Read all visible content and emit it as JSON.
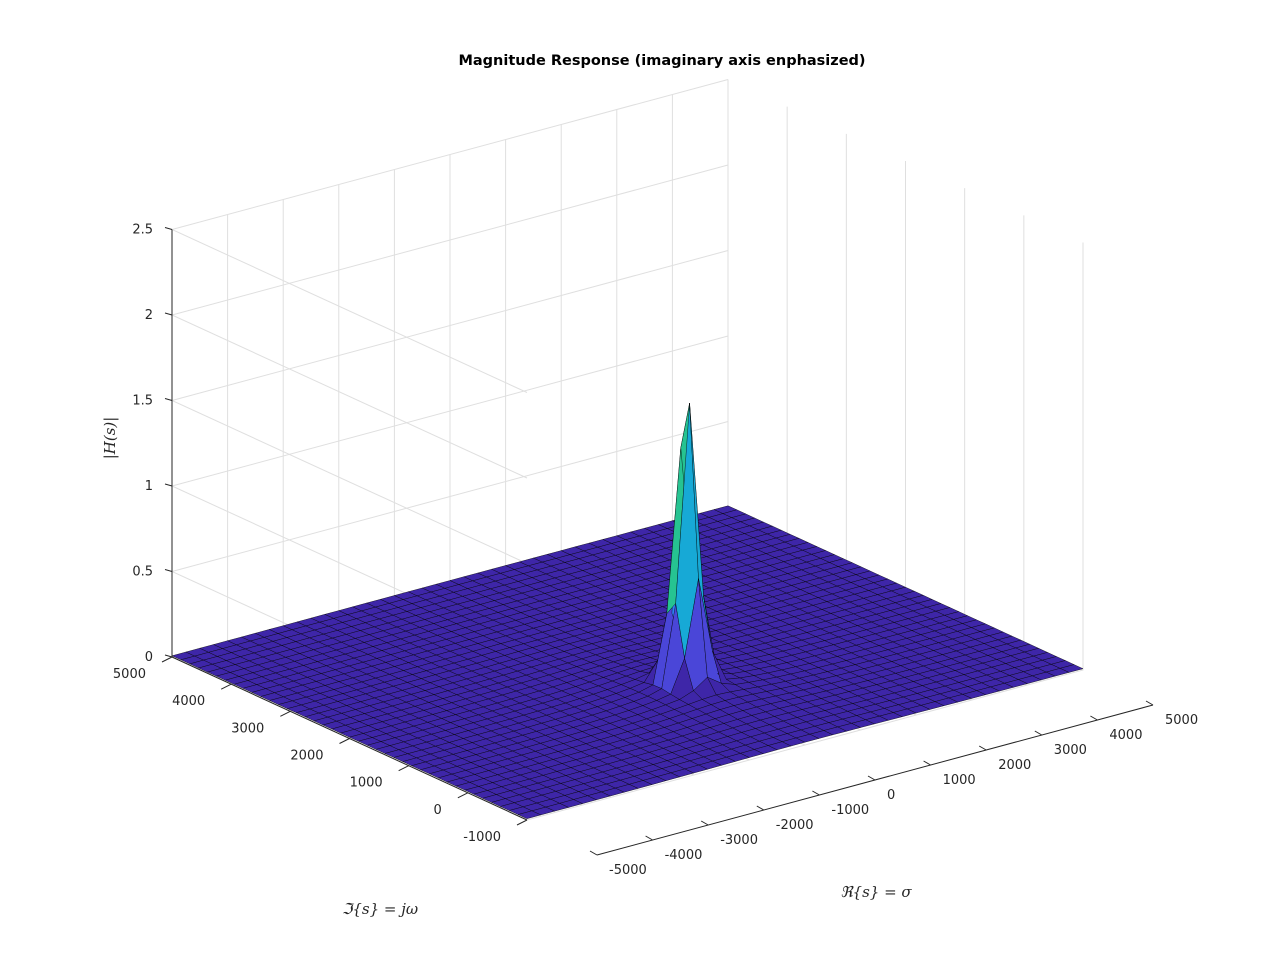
{
  "chart_data": {
    "type": "surface",
    "title": "Magnitude Response (imaginary axis enphasized)",
    "xlabel": "ℜ{s} = σ",
    "ylabel": "ℑ{s} = jω",
    "zlabel": "|H(s)|",
    "x_ticks": [
      "-5000",
      "-4000",
      "-3000",
      "-2000",
      "-1000",
      "0",
      "1000",
      "2000",
      "3000",
      "4000",
      "5000"
    ],
    "y_ticks": [
      "-1000",
      "0",
      "1000",
      "2000",
      "3000",
      "4000",
      "5000"
    ],
    "z_ticks": [
      "0",
      "0.5",
      "1",
      "1.5",
      "2",
      "2.5"
    ],
    "xlim": [
      -5000,
      5000
    ],
    "ylim": [
      -1000,
      5000
    ],
    "zlim": [
      0,
      2.5
    ],
    "grid": true,
    "colormap": [
      "#3e26a8",
      "#4a46d8",
      "#2f80f5",
      "#17a9d6",
      "#26c391",
      "#8fcb47",
      "#e8ba28",
      "#f9f90f"
    ],
    "peak": {
      "sigma": 0,
      "omega": 1000,
      "magnitude": 1.73
    }
  }
}
